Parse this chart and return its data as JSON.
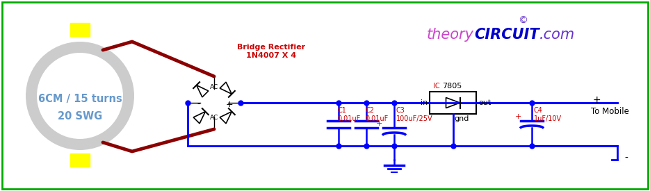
{
  "bg_color": "#ffffff",
  "border_color": "#00aa00",
  "blue": "#0000ff",
  "dark_red": "#8b0000",
  "red_text": "#cc0000",
  "light_blue_text": "#6699cc",
  "title_theory": "#cc44cc",
  "title_circuit": "#0000cc",
  "title_com": "#6633cc",
  "copyright_color": "#6633cc",
  "yellow": "#ffff00",
  "black": "#000000",
  "coil_text": "6CM / 15 turns\n20 SWG",
  "bridge_label1": "Bridge Rectifier",
  "bridge_label2": "1N4007 X 4",
  "ic_label_ic": "IC",
  "ic_label_num": "7805",
  "in_label": "in",
  "out_label": "out",
  "gnd_label": "gnd",
  "c1_label": "C1\n0.01uF",
  "c2_label": "C2\n0.01uF",
  "c3_label": "C3\n100uF/25V",
  "c4_label": "C4\n1uF/10V",
  "to_mobile": "To Mobile",
  "copyright_sym": "©"
}
